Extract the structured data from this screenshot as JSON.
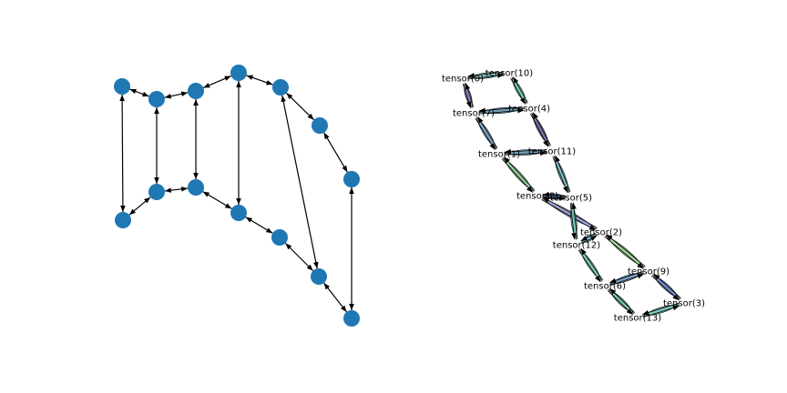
{
  "left_graph": {
    "node_color": "#1f77b4",
    "edge_color": "#000000",
    "nodes": [
      "a",
      "b",
      "c",
      "d",
      "e",
      "f",
      "g",
      "h",
      "i",
      "j",
      "k",
      "l",
      "m",
      "n"
    ],
    "edges": [
      [
        "a",
        "b"
      ],
      [
        "a",
        "c"
      ],
      [
        "b",
        "d"
      ],
      [
        "b",
        "f"
      ],
      [
        "c",
        "d"
      ],
      [
        "d",
        "e"
      ],
      [
        "e",
        "f"
      ],
      [
        "e",
        "g"
      ],
      [
        "f",
        "h"
      ],
      [
        "g",
        "h"
      ],
      [
        "g",
        "i"
      ],
      [
        "h",
        "j"
      ],
      [
        "i",
        "k"
      ],
      [
        "j",
        "k"
      ],
      [
        "j",
        "l"
      ],
      [
        "k",
        "m"
      ],
      [
        "l",
        "n"
      ],
      [
        "m",
        "n"
      ]
    ]
  },
  "right_graph": {
    "edge_color": "#000000",
    "nodes": [
      {
        "id": "t0",
        "label": "tensor(0)"
      },
      {
        "id": "t10",
        "label": "tensor(10)"
      },
      {
        "id": "t7",
        "label": "tensor(7)"
      },
      {
        "id": "t4",
        "label": "tensor(4)"
      },
      {
        "id": "t1",
        "label": "tensor(1)"
      },
      {
        "id": "t11",
        "label": "tensor(11)"
      },
      {
        "id": "t8",
        "label": "tensor(8)"
      },
      {
        "id": "t5",
        "label": "tensor(5)"
      },
      {
        "id": "t2",
        "label": "tensor(2)"
      },
      {
        "id": "t12",
        "label": "tensor(12)"
      },
      {
        "id": "t9",
        "label": "tensor(9)"
      },
      {
        "id": "t6",
        "label": "tensor(6)"
      },
      {
        "id": "t3",
        "label": "tensor(3)"
      },
      {
        "id": "t13",
        "label": "tensor(13)"
      }
    ],
    "edges": [
      {
        "a": "t0",
        "b": "t10",
        "color": "#8cc7c4"
      },
      {
        "a": "t0",
        "b": "t7",
        "color": "#8e79b5"
      },
      {
        "a": "t10",
        "b": "t4",
        "color": "#72c8b5"
      },
      {
        "a": "t7",
        "b": "t4",
        "color": "#6fa0b8"
      },
      {
        "a": "t7",
        "b": "t1",
        "color": "#7aa4c4"
      },
      {
        "a": "t4",
        "b": "t11",
        "color": "#7b6aa8"
      },
      {
        "a": "t1",
        "b": "t11",
        "color": "#6f9fb5"
      },
      {
        "a": "t1",
        "b": "t8",
        "color": "#8fd19a"
      },
      {
        "a": "t11",
        "b": "t5",
        "color": "#77b5c2"
      },
      {
        "a": "t8",
        "b": "t5",
        "color": "#6a8dc0"
      },
      {
        "a": "t8",
        "b": "t2",
        "color": "#9aa6d6"
      },
      {
        "a": "t5",
        "b": "t12",
        "color": "#6cc1b4"
      },
      {
        "a": "t2",
        "b": "t12",
        "color": "#6fb5c2"
      },
      {
        "a": "t2",
        "b": "t9",
        "color": "#9ad797"
      },
      {
        "a": "t12",
        "b": "t6",
        "color": "#78c9b6"
      },
      {
        "a": "t9",
        "b": "t6",
        "color": "#7a9fc9"
      },
      {
        "a": "t9",
        "b": "t3",
        "color": "#6f8ac4"
      },
      {
        "a": "t6",
        "b": "t13",
        "color": "#77c7b5"
      },
      {
        "a": "t3",
        "b": "t13",
        "color": "#7cc6c0"
      }
    ]
  }
}
